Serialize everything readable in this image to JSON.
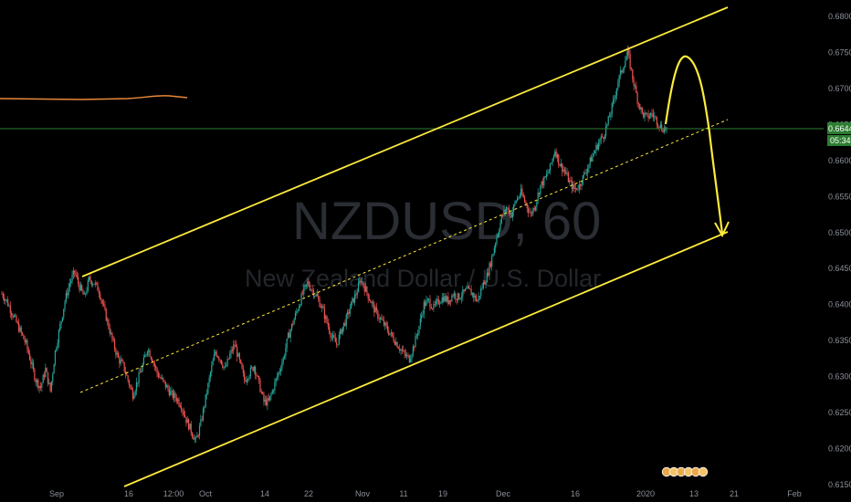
{
  "chart_data": {
    "type": "candlestick",
    "symbol": "NZDUSD",
    "interval": "60",
    "description": "New Zealand Dollar / U.S. Dollar",
    "watermark_sep": ",",
    "price_axis": {
      "ymin": 0.615,
      "ymax": 0.6825,
      "ticks": [
        "0.68000",
        "0.67500",
        "0.67000",
        "0.66500",
        "0.66000",
        "0.65500",
        "0.65000",
        "0.64500",
        "0.64000",
        "0.63500",
        "0.63000",
        "0.62500",
        "0.62000",
        "0.61500"
      ]
    },
    "time_axis": {
      "ticks": [
        "Sep",
        "16",
        "12:00",
        "Oct",
        "14",
        "22",
        "Nov",
        "11",
        "19",
        "Dec",
        "16",
        "2020",
        "13",
        "21",
        "Feb"
      ]
    },
    "current_price": "0.66442",
    "countdown": "05:34",
    "series_close": [
      0.6415,
      0.6405,
      0.639,
      0.6375,
      0.636,
      0.6345,
      0.632,
      0.6295,
      0.6285,
      0.631,
      0.628,
      0.6335,
      0.637,
      0.6405,
      0.643,
      0.6445,
      0.6425,
      0.641,
      0.6435,
      0.643,
      0.642,
      0.6395,
      0.637,
      0.6345,
      0.6325,
      0.6315,
      0.6295,
      0.6275,
      0.6295,
      0.6315,
      0.634,
      0.6325,
      0.6305,
      0.6295,
      0.6285,
      0.6275,
      0.627,
      0.626,
      0.624,
      0.6225,
      0.621,
      0.6235,
      0.627,
      0.6305,
      0.6335,
      0.6325,
      0.631,
      0.633,
      0.6345,
      0.632,
      0.6295,
      0.6305,
      0.6315,
      0.629,
      0.6265,
      0.6265,
      0.6285,
      0.6305,
      0.6325,
      0.6355,
      0.6375,
      0.6395,
      0.6415,
      0.643,
      0.642,
      0.641,
      0.6395,
      0.6375,
      0.6355,
      0.6345,
      0.6365,
      0.638,
      0.64,
      0.6415,
      0.6435,
      0.642,
      0.6405,
      0.639,
      0.638,
      0.637,
      0.636,
      0.635,
      0.634,
      0.633,
      0.6325,
      0.6345,
      0.637,
      0.64,
      0.6405,
      0.6395,
      0.6405,
      0.641,
      0.6405,
      0.6415,
      0.641,
      0.6415,
      0.642,
      0.6415,
      0.6405,
      0.6425,
      0.644,
      0.6465,
      0.6495,
      0.652,
      0.6535,
      0.6525,
      0.6545,
      0.6555,
      0.654,
      0.6525,
      0.654,
      0.6565,
      0.6575,
      0.659,
      0.6615,
      0.6595,
      0.6585,
      0.657,
      0.656,
      0.6565,
      0.658,
      0.6595,
      0.661,
      0.6625,
      0.6635,
      0.6655,
      0.668,
      0.671,
      0.673,
      0.675,
      0.6715,
      0.6685,
      0.6665,
      0.666,
      0.6665,
      0.6655,
      0.6645,
      0.6644
    ],
    "drawings": [
      {
        "type": "trendline",
        "color": "#ffeb3b",
        "from": [
          "2019-09-05",
          0.6438
        ],
        "to": [
          "2020-01-24",
          0.6815
        ]
      },
      {
        "type": "trendline",
        "color": "#ffeb3b",
        "from": [
          "2019-09-09",
          0.6155
        ],
        "to": [
          "2020-01-24",
          0.6495
        ]
      },
      {
        "type": "dashed-midline",
        "color": "#ffeb3b",
        "from": [
          "2019-09-05",
          0.6295
        ],
        "to": [
          "2020-01-24",
          0.6655
        ]
      },
      {
        "type": "projection-arrow",
        "color": "#ffeb3b",
        "path": [
          [
            "2020-01-08",
            0.6645
          ],
          [
            "2020-01-12",
            0.6745
          ],
          [
            "2020-01-16",
            0.6655
          ],
          [
            "2020-01-19",
            0.6495
          ]
        ]
      }
    ],
    "indicator": {
      "color": "#e8883a",
      "y_level": "~0.6685 region (separate scale)"
    },
    "horizontal_line": {
      "price": 0.66442,
      "color": "#2e7d32"
    },
    "legend": "top-left (hidden)",
    "grid": false
  }
}
